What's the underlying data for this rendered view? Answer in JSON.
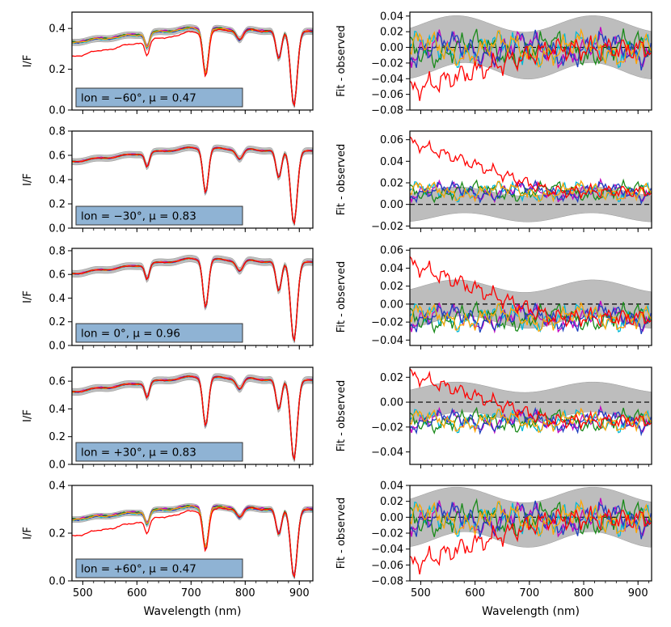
{
  "figure": {
    "xlabel": "Wavelength (nm)",
    "left_ylabel": "I/F",
    "right_ylabel": "Fit - observed",
    "x_ticks": [
      "500",
      "600",
      "700",
      "800",
      "900"
    ],
    "series_colors": {
      "observed": "#000000",
      "uncertainty_band": "#bdbdbd",
      "red_model": "#ff0000",
      "magenta_model": "#c000c0",
      "cyan_model": "#00b8d8",
      "green_model": "#1a8a1a",
      "blue_model": "#1f3fbf",
      "orange_model": "#ffa500"
    },
    "annotation_box_color": "#8fb3d4"
  },
  "chart_data": [
    {
      "type": "line",
      "panel": "spectrum",
      "row": 1,
      "annotation": "lon = −60°, μ = 0.47",
      "xlim": [
        480,
        925
      ],
      "ylim": [
        0.0,
        0.48
      ],
      "yticks": [
        "0.0",
        "0.2",
        "0.4"
      ],
      "ytick_values": [
        0.0,
        0.2,
        0.4
      ],
      "base_level": 0.4,
      "offset_model": -0.07
    },
    {
      "type": "line",
      "panel": "residual",
      "row": 1,
      "xlim": [
        480,
        925
      ],
      "ylim": [
        -0.08,
        0.045
      ],
      "yticks": [
        "0.04",
        "0.02",
        "0.00",
        "−0.02",
        "−0.04",
        "−0.06",
        "−0.08"
      ],
      "ytick_values": [
        0.04,
        0.02,
        0.0,
        -0.02,
        -0.04,
        -0.06,
        -0.08
      ],
      "band_halfwidth": 0.03,
      "model_offset": -0.002,
      "red_start": -0.055
    },
    {
      "type": "line",
      "panel": "spectrum",
      "row": 2,
      "annotation": "lon = −30°, μ = 0.83",
      "xlim": [
        480,
        925
      ],
      "ylim": [
        0.0,
        0.8
      ],
      "yticks": [
        "0.0",
        "0.2",
        "0.4",
        "0.6",
        "0.8"
      ],
      "ytick_values": [
        0.0,
        0.2,
        0.4,
        0.6,
        0.8
      ],
      "base_level": 0.66,
      "offset_model": 0.0
    },
    {
      "type": "line",
      "panel": "residual",
      "row": 2,
      "xlim": [
        480,
        925
      ],
      "ylim": [
        -0.022,
        0.068
      ],
      "yticks": [
        "0.06",
        "0.04",
        "0.02",
        "0.00",
        "−0.02"
      ],
      "ytick_values": [
        0.06,
        0.04,
        0.02,
        0.0,
        -0.02
      ],
      "band_halfwidth": 0.012,
      "model_offset": 0.012,
      "red_start": 0.058
    },
    {
      "type": "line",
      "panel": "spectrum",
      "row": 3,
      "annotation": "lon = 0°, μ = 0.96",
      "xlim": [
        480,
        925
      ],
      "ylim": [
        0.0,
        0.82
      ],
      "yticks": [
        "0.0",
        "0.2",
        "0.4",
        "0.6",
        "0.8"
      ],
      "ytick_values": [
        0.0,
        0.2,
        0.4,
        0.6,
        0.8
      ],
      "base_level": 0.73,
      "offset_model": 0.0
    },
    {
      "type": "line",
      "panel": "residual",
      "row": 3,
      "xlim": [
        480,
        925
      ],
      "ylim": [
        -0.046,
        0.062
      ],
      "yticks": [
        "0.06",
        "0.04",
        "0.02",
        "0.00",
        "−0.02",
        "−0.04"
      ],
      "ytick_values": [
        0.06,
        0.04,
        0.02,
        0.0,
        -0.02,
        -0.04
      ],
      "band_halfwidth": 0.02,
      "model_offset": -0.015,
      "red_start": 0.045
    },
    {
      "type": "line",
      "panel": "spectrum",
      "row": 4,
      "annotation": "lon = +30°, μ = 0.83",
      "xlim": [
        480,
        925
      ],
      "ylim": [
        0.0,
        0.7
      ],
      "yticks": [
        "0.0",
        "0.2",
        "0.4",
        "0.6"
      ],
      "ytick_values": [
        0.0,
        0.2,
        0.4,
        0.6
      ],
      "base_level": 0.63,
      "offset_model": 0.0
    },
    {
      "type": "line",
      "panel": "residual",
      "row": 4,
      "xlim": [
        480,
        925
      ],
      "ylim": [
        -0.05,
        0.028
      ],
      "yticks": [
        "0.02",
        "0.00",
        "−0.02",
        "−0.04"
      ],
      "ytick_values": [
        0.02,
        0.0,
        -0.02,
        -0.04
      ],
      "band_halfwidth": 0.012,
      "model_offset": -0.015,
      "red_start": 0.022
    },
    {
      "type": "line",
      "panel": "spectrum",
      "row": 5,
      "annotation": "lon = +60°, μ = 0.47",
      "xlim": [
        480,
        925
      ],
      "ylim": [
        0.0,
        0.4
      ],
      "yticks": [
        "0.0",
        "0.2",
        "0.4"
      ],
      "ytick_values": [
        0.0,
        0.2,
        0.4
      ],
      "base_level": 0.31,
      "offset_model": -0.07
    },
    {
      "type": "line",
      "panel": "residual",
      "row": 5,
      "xlim": [
        480,
        925
      ],
      "ylim": [
        -0.08,
        0.04
      ],
      "yticks": [
        "0.04",
        "0.02",
        "0.00",
        "−0.02",
        "−0.04",
        "−0.06",
        "−0.08"
      ],
      "ytick_values": [
        0.04,
        0.02,
        0.0,
        -0.02,
        -0.04,
        -0.06,
        -0.08
      ],
      "band_halfwidth": 0.028,
      "model_offset": -0.002,
      "red_start": -0.06
    }
  ]
}
